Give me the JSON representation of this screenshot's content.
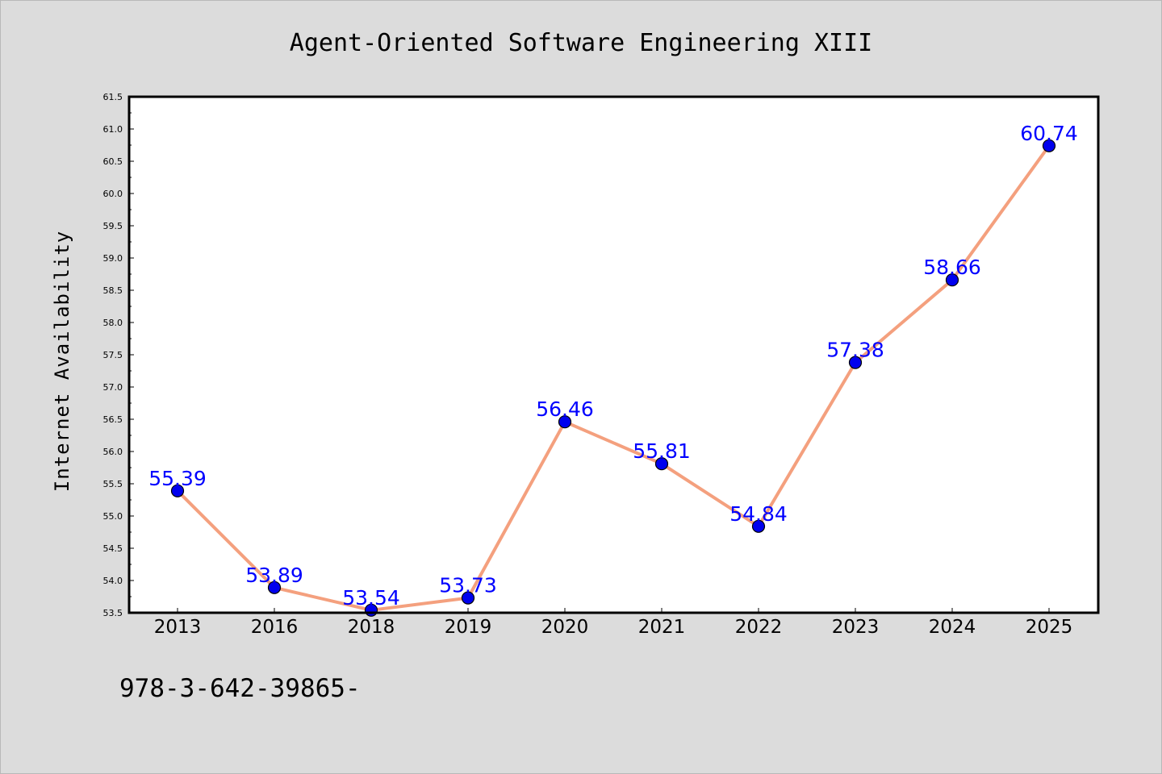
{
  "chart_data": {
    "type": "line",
    "title": "Agent-Oriented Software Engineering XIII",
    "xlabel": "",
    "ylabel": "Internet Availability",
    "categories": [
      "2013",
      "2016",
      "2018",
      "2019",
      "2020",
      "2021",
      "2022",
      "2023",
      "2024",
      "2025"
    ],
    "series": [
      {
        "values": [
          55.39,
          53.89,
          53.54,
          53.73,
          56.46,
          55.81,
          54.84,
          57.38,
          58.66,
          60.74
        ],
        "line_color": "#f4a07e",
        "marker_color": "#0000ee"
      }
    ],
    "data_labels": [
      "55.39",
      "53.89",
      "53.54",
      "53.73",
      "56.46",
      "55.81",
      "54.84",
      "57.38",
      "58.66",
      "60.74"
    ],
    "ylim": [
      53.5,
      61.5
    ],
    "yticks": [
      "53.5",
      "54.0",
      "54.5",
      "55.0",
      "55.5",
      "56.0",
      "56.5",
      "57.0",
      "57.5",
      "58.0",
      "58.5",
      "59.0",
      "59.5",
      "60.0",
      "60.5",
      "61.0",
      "61.5"
    ],
    "grid": false,
    "legend": "none",
    "footer": "978-3-642-39865-",
    "label_color": "#0000ff",
    "background": "#dcdcdc",
    "plot_background": "#ffffff"
  }
}
